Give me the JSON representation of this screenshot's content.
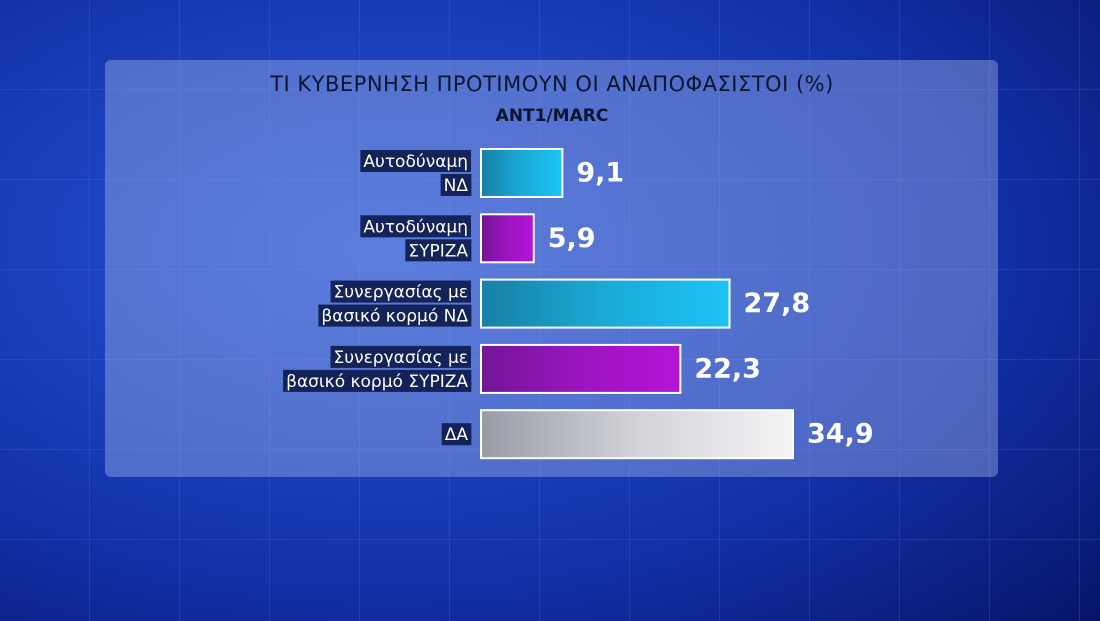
{
  "chart_data": {
    "type": "barh",
    "title": "ΤΙ ΚΥΒΕΡΝΗΣΗ ΠΡΟΤΙΜΟΥΝ ΟΙ ΑΝΑΠΟΦΑΣΙΣΤΟΙ (%)",
    "subtitle": "ANT1/MARC",
    "categories": [
      [
        "Αυτοδύναμη",
        "ΝΔ"
      ],
      [
        "Αυτοδύναμη",
        "ΣΥΡΙΖΑ"
      ],
      [
        "Συνεργασίας με",
        "βασικό κορμό ΝΔ"
      ],
      [
        "Συνεργασίας με",
        "βασικό κορμό ΣΥΡΙΖΑ"
      ],
      [
        "ΔΑ"
      ]
    ],
    "values": [
      9.1,
      5.9,
      27.8,
      22.3,
      34.9
    ],
    "value_labels": [
      "9,1",
      "5,9",
      "27,8",
      "22,3",
      "34,9"
    ],
    "colors": [
      "#1cc4f4",
      "#b414d8",
      "#1cc4f4",
      "#b414d8",
      "#f4f4f6"
    ]
  }
}
